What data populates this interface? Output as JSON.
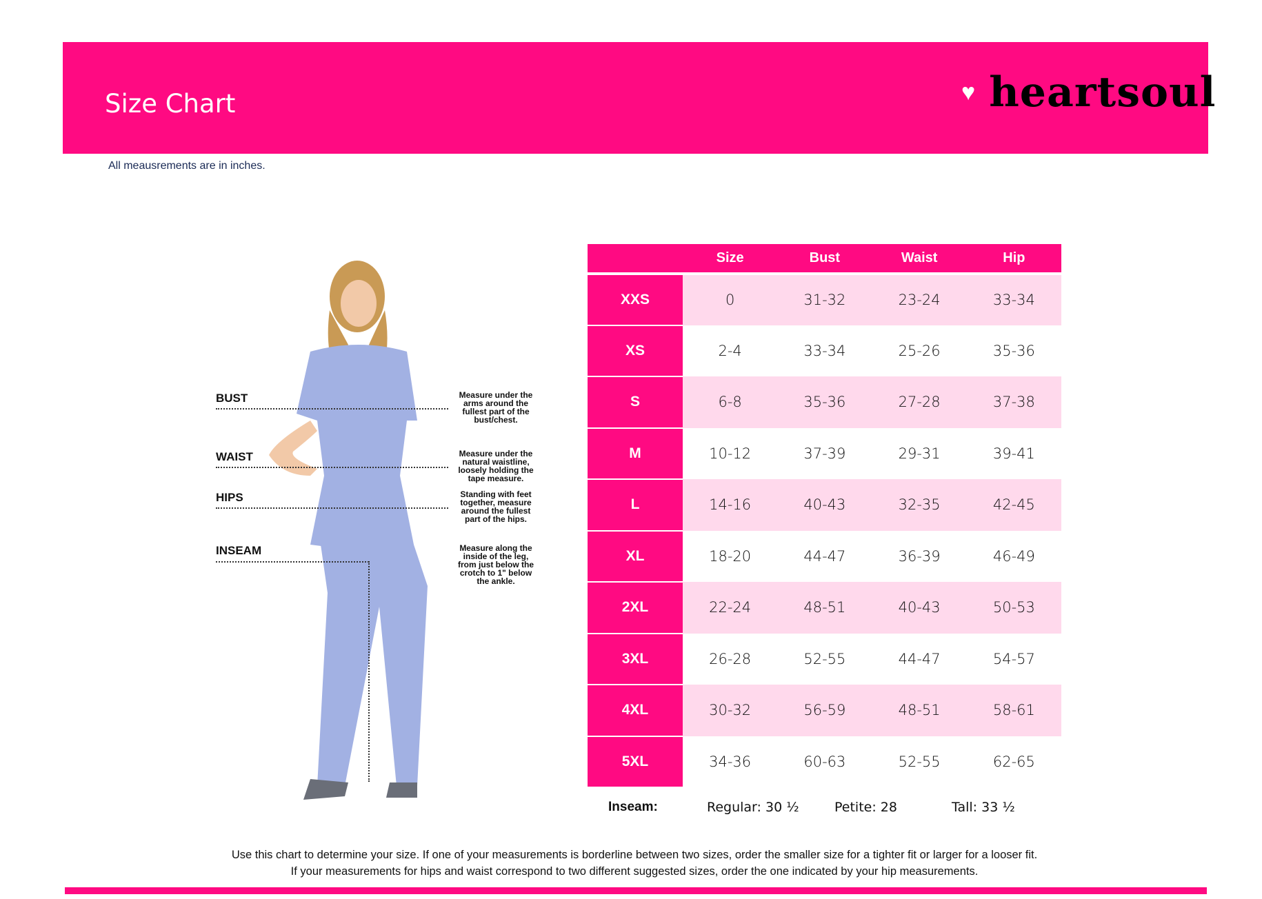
{
  "header": {
    "title": "Size Chart",
    "brand": "heartsoul",
    "brand_color": "#ff0a82"
  },
  "note": "All meausrements are in inches.",
  "measurements": [
    {
      "label": "BUST",
      "note": "Measure under the arms around the fullest part of the bust/chest."
    },
    {
      "label": "WAIST",
      "note": "Measure under the natural waistline, loosely holding the tape measure."
    },
    {
      "label": "HIPS",
      "note": "Standing with feet together, measure around the fullest part of the hips."
    },
    {
      "label": "INSEAM",
      "note": "Measure along the inside of the leg, from just below the crotch to 1\" below the ankle."
    }
  ],
  "table": {
    "headers": [
      "",
      "Size",
      "Bust",
      "Waist",
      "Hip"
    ],
    "rows": [
      [
        "XXS",
        "0",
        "31-32",
        "23-24",
        "33-34"
      ],
      [
        "XS",
        "2-4",
        "33-34",
        "25-26",
        "35-36"
      ],
      [
        "S",
        "6-8",
        "35-36",
        "27-28",
        "37-38"
      ],
      [
        "M",
        "10-12",
        "37-39",
        "29-31",
        "39-41"
      ],
      [
        "L",
        "14-16",
        "40-43",
        "32-35",
        "42-45"
      ],
      [
        "XL",
        "18-20",
        "44-47",
        "36-39",
        "46-49"
      ],
      [
        "2XL",
        "22-24",
        "48-51",
        "40-43",
        "50-53"
      ],
      [
        "3XL",
        "26-28",
        "52-55",
        "44-47",
        "54-57"
      ],
      [
        "4XL",
        "30-32",
        "56-59",
        "48-51",
        "58-61"
      ],
      [
        "5XL",
        "34-36",
        "60-63",
        "52-55",
        "62-65"
      ]
    ]
  },
  "inseam": {
    "label": "Inseam:",
    "regular": "Regular: 30 ½",
    "petite": "Petite: 28",
    "tall": "Tall: 33 ½"
  },
  "footer": [
    "Use this chart to determine your size. If one of your measurements is borderline between two sizes, order the smaller size for a tighter fit or larger for a looser fit.",
    "If your measurements for hips and waist correspond to two different suggested sizes, order the one indicated by your hip measurements."
  ]
}
